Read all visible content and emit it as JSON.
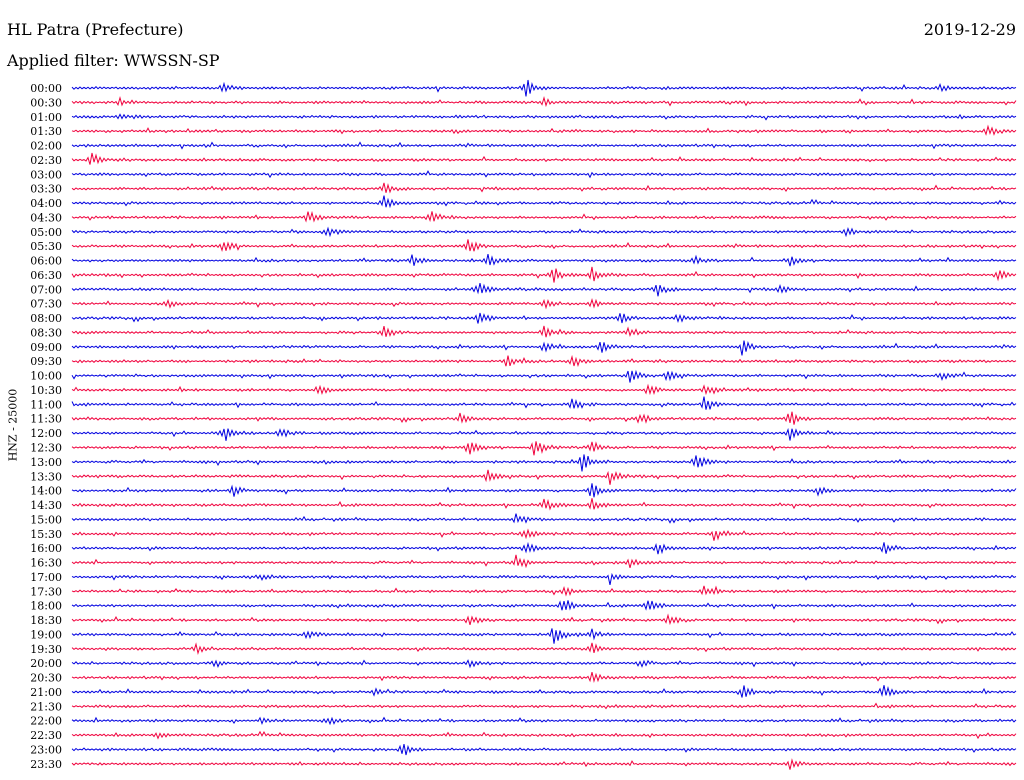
{
  "header": {
    "station": "HL Patra (Prefecture)",
    "date": "2019-12-29",
    "filter_label": "Applied filter:",
    "filter_value": "WWSSN-SP"
  },
  "channel_label": "HNZ - 25000",
  "colors": {
    "trace_a": "#0000e0",
    "trace_b": "#f0003c",
    "text": "#000000",
    "background": "#ffffff"
  },
  "chart_data": {
    "type": "line",
    "title": "HL Patra (Prefecture)",
    "subtitle": "Applied filter: WWSSN-SP",
    "ylabel": "HNZ - 25000",
    "xlabel": "",
    "grid": false,
    "legend": "none",
    "series_colors_alternate": [
      "#0000e0",
      "#f0003c"
    ],
    "rows": [
      {
        "label": "00:00",
        "events": [
          [
            0.48,
            0.9
          ],
          [
            0.16,
            0.35
          ],
          [
            0.92,
            0.35
          ]
        ]
      },
      {
        "label": "00:30",
        "events": [
          [
            0.05,
            0.3
          ],
          [
            0.5,
            0.3
          ]
        ]
      },
      {
        "label": "01:00",
        "events": [
          [
            0.05,
            0.3
          ]
        ]
      },
      {
        "label": "01:30",
        "events": [
          [
            0.97,
            0.45
          ]
        ]
      },
      {
        "label": "02:00",
        "events": []
      },
      {
        "label": "02:30",
        "events": [
          [
            0.02,
            0.6
          ]
        ]
      },
      {
        "label": "03:00",
        "events": []
      },
      {
        "label": "03:30",
        "events": [
          [
            0.33,
            0.45
          ]
        ]
      },
      {
        "label": "04:00",
        "events": [
          [
            0.33,
            0.65
          ]
        ]
      },
      {
        "label": "04:30",
        "events": [
          [
            0.25,
            0.6
          ],
          [
            0.38,
            0.55
          ]
        ]
      },
      {
        "label": "05:00",
        "events": [
          [
            0.27,
            0.5
          ],
          [
            0.82,
            0.3
          ]
        ]
      },
      {
        "label": "05:30",
        "events": [
          [
            0.16,
            0.55
          ],
          [
            0.42,
            0.7
          ]
        ]
      },
      {
        "label": "06:00",
        "events": [
          [
            0.36,
            0.5
          ],
          [
            0.44,
            0.55
          ],
          [
            0.66,
            0.35
          ],
          [
            0.76,
            0.45
          ]
        ]
      },
      {
        "label": "06:30",
        "events": [
          [
            0.51,
            0.75
          ],
          [
            0.55,
            0.7
          ],
          [
            0.98,
            0.5
          ]
        ]
      },
      {
        "label": "07:00",
        "events": [
          [
            0.43,
            0.6
          ],
          [
            0.62,
            0.55
          ],
          [
            0.75,
            0.35
          ]
        ]
      },
      {
        "label": "07:30",
        "events": [
          [
            0.1,
            0.35
          ],
          [
            0.5,
            0.35
          ],
          [
            0.55,
            0.45
          ]
        ]
      },
      {
        "label": "08:00",
        "events": [
          [
            0.43,
            0.6
          ],
          [
            0.58,
            0.5
          ],
          [
            0.64,
            0.4
          ]
        ]
      },
      {
        "label": "08:30",
        "events": [
          [
            0.33,
            0.6
          ],
          [
            0.5,
            0.55
          ],
          [
            0.59,
            0.45
          ]
        ]
      },
      {
        "label": "09:00",
        "events": [
          [
            0.5,
            0.55
          ],
          [
            0.56,
            0.6
          ],
          [
            0.71,
            0.7
          ]
        ]
      },
      {
        "label": "09:30",
        "events": [
          [
            0.46,
            0.6
          ],
          [
            0.53,
            0.6
          ]
        ]
      },
      {
        "label": "10:00",
        "events": [
          [
            0.59,
            0.65
          ],
          [
            0.63,
            0.55
          ],
          [
            0.92,
            0.4
          ]
        ]
      },
      {
        "label": "10:30",
        "events": [
          [
            0.26,
            0.45
          ],
          [
            0.61,
            0.55
          ],
          [
            0.67,
            0.7
          ]
        ]
      },
      {
        "label": "11:00",
        "events": [
          [
            0.53,
            0.55
          ],
          [
            0.67,
            0.8
          ]
        ]
      },
      {
        "label": "11:30",
        "events": [
          [
            0.41,
            0.45
          ],
          [
            0.6,
            0.5
          ],
          [
            0.76,
            0.75
          ]
        ]
      },
      {
        "label": "12:00",
        "events": [
          [
            0.16,
            0.8
          ],
          [
            0.22,
            0.4
          ],
          [
            0.76,
            0.8
          ]
        ]
      },
      {
        "label": "12:30",
        "events": [
          [
            0.42,
            0.65
          ],
          [
            0.49,
            0.85
          ],
          [
            0.55,
            0.55
          ]
        ]
      },
      {
        "label": "13:00",
        "events": [
          [
            0.54,
            0.9
          ],
          [
            0.66,
            0.85
          ]
        ]
      },
      {
        "label": "13:30",
        "events": [
          [
            0.44,
            0.6
          ],
          [
            0.57,
            0.6
          ]
        ]
      },
      {
        "label": "14:00",
        "events": [
          [
            0.17,
            0.5
          ],
          [
            0.55,
            0.75
          ],
          [
            0.79,
            0.55
          ]
        ]
      },
      {
        "label": "14:30",
        "events": [
          [
            0.5,
            0.6
          ],
          [
            0.55,
            0.55
          ]
        ]
      },
      {
        "label": "15:00",
        "events": [
          [
            0.47,
            0.45
          ]
        ]
      },
      {
        "label": "15:30",
        "events": [
          [
            0.48,
            0.55
          ],
          [
            0.68,
            0.6
          ]
        ]
      },
      {
        "label": "16:00",
        "events": [
          [
            0.48,
            0.55
          ],
          [
            0.62,
            0.5
          ],
          [
            0.86,
            0.6
          ]
        ]
      },
      {
        "label": "16:30",
        "events": [
          [
            0.47,
            0.55
          ],
          [
            0.59,
            0.45
          ]
        ]
      },
      {
        "label": "17:00",
        "events": [
          [
            0.2,
            0.3
          ],
          [
            0.57,
            0.5
          ]
        ]
      },
      {
        "label": "17:30",
        "events": [
          [
            0.52,
            0.5
          ],
          [
            0.67,
            0.5
          ]
        ]
      },
      {
        "label": "18:00",
        "events": [
          [
            0.52,
            0.85
          ],
          [
            0.61,
            0.65
          ]
        ]
      },
      {
        "label": "18:30",
        "events": [
          [
            0.42,
            0.6
          ],
          [
            0.63,
            0.55
          ]
        ]
      },
      {
        "label": "19:00",
        "events": [
          [
            0.25,
            0.4
          ],
          [
            0.51,
            0.9
          ],
          [
            0.55,
            0.45
          ]
        ]
      },
      {
        "label": "19:30",
        "events": [
          [
            0.13,
            0.4
          ],
          [
            0.55,
            0.55
          ]
        ]
      },
      {
        "label": "20:00",
        "events": [
          [
            0.15,
            0.35
          ],
          [
            0.42,
            0.4
          ],
          [
            0.6,
            0.35
          ]
        ]
      },
      {
        "label": "20:30",
        "events": [
          [
            0.55,
            0.5
          ]
        ]
      },
      {
        "label": "21:00",
        "events": [
          [
            0.32,
            0.3
          ],
          [
            0.71,
            0.6
          ],
          [
            0.86,
            0.6
          ]
        ]
      },
      {
        "label": "21:30",
        "events": []
      },
      {
        "label": "22:00",
        "events": [
          [
            0.2,
            0.3
          ],
          [
            0.27,
            0.4
          ]
        ]
      },
      {
        "label": "22:30",
        "events": [
          [
            0.09,
            0.3
          ]
        ]
      },
      {
        "label": "23:00",
        "events": [
          [
            0.35,
            0.65
          ]
        ]
      },
      {
        "label": "23:30",
        "events": [
          [
            0.76,
            0.55
          ]
        ]
      }
    ]
  }
}
